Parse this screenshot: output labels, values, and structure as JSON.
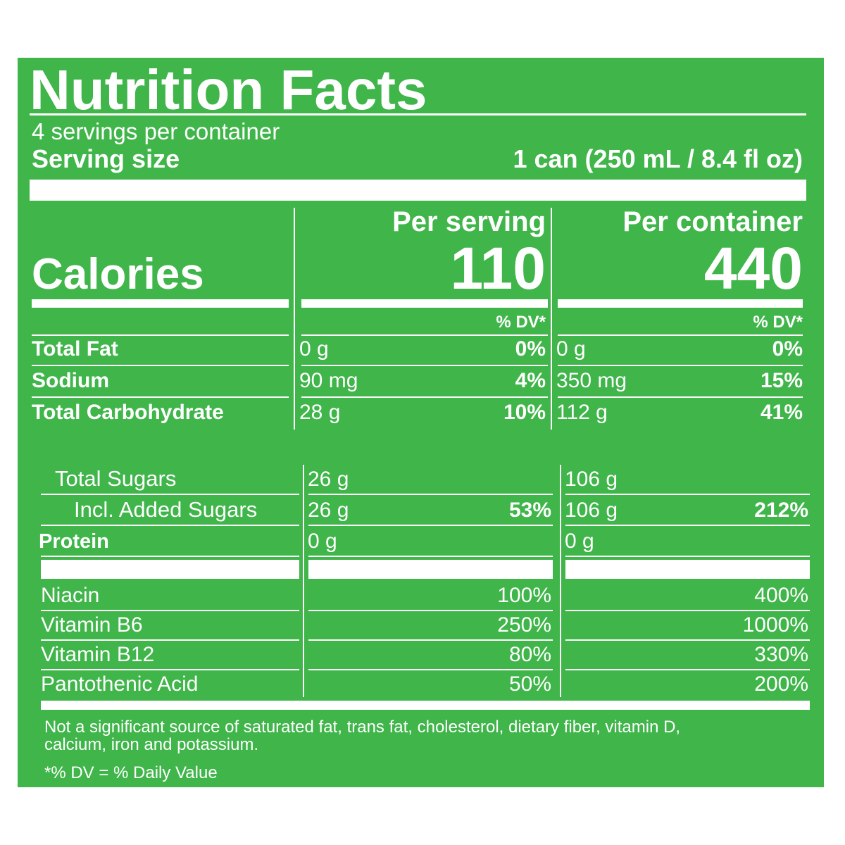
{
  "header": {
    "title": "Nutrition Facts",
    "servings_per_container": "4 servings per container",
    "serving_size_label": "Serving size",
    "serving_size_value": "1 can (250 mL / 8.4 fl oz)"
  },
  "columns": [
    "Per serving",
    "Per container"
  ],
  "calories": {
    "label": "Calories",
    "per_serving": "110",
    "per_container": "440"
  },
  "dv_header": "% DV*",
  "nutrients": [
    {
      "name": "Total Fat",
      "serving_amount": "0 g",
      "serving_dv": "0%",
      "container_amount": "0 g",
      "container_dv": "0%"
    },
    {
      "name": "Sodium",
      "serving_amount": "90 mg",
      "serving_dv": "4%",
      "container_amount": "350 mg",
      "container_dv": "15%"
    },
    {
      "name": "Total Carbohydrate",
      "serving_amount": "28 g",
      "serving_dv": "10%",
      "container_amount": "112 g",
      "container_dv": "41%"
    }
  ],
  "sub_nutrients": [
    {
      "name": "Total Sugars",
      "serving_amount": "26 g",
      "container_amount": "106 g"
    },
    {
      "name": "Incl. Added Sugars",
      "serving_amount": "26 g",
      "serving_dv": "53%",
      "container_amount": "106 g",
      "container_dv": "212%"
    },
    {
      "name": "Protein",
      "serving_amount": "0 g",
      "container_amount": "0 g"
    }
  ],
  "vitamins": [
    {
      "name": "Niacin",
      "serving_dv": "100%",
      "container_dv": "400%"
    },
    {
      "name": "Vitamin B6",
      "serving_dv": "250%",
      "container_dv": "1000%"
    },
    {
      "name": "Vitamin B12",
      "serving_dv": "80%",
      "container_dv": "330%"
    },
    {
      "name": "Pantothenic Acid",
      "serving_dv": "50%",
      "container_dv": "200%"
    }
  ],
  "footnote": [
    "Not a significant source of saturated fat, trans fat, cholesterol, dietary fiber, vitamin D,",
    "calcium, iron and potassium."
  ],
  "dv_note": "*% DV = % Daily Value"
}
